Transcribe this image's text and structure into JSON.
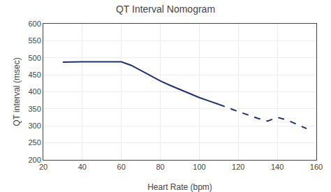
{
  "chart_data": {
    "type": "line",
    "title": "QT Interval Nomogram",
    "xlabel": "Heart Rate (bpm)",
    "ylabel": "QT interval (msec)",
    "xlim": [
      20,
      160
    ],
    "ylim": [
      200,
      600
    ],
    "xticks": [
      20,
      40,
      60,
      80,
      100,
      120,
      140,
      160
    ],
    "yticks": [
      200,
      250,
      300,
      350,
      400,
      450,
      500,
      550,
      600
    ],
    "grid": true,
    "series": [
      {
        "color": "#1e3070",
        "line_style": "solid",
        "x": [
          30,
          35,
          40,
          45,
          50,
          55,
          60,
          65,
          70,
          75,
          80,
          85,
          90,
          95,
          100,
          105,
          110
        ],
        "values": [
          487,
          488,
          488,
          488,
          488,
          488,
          488,
          478,
          463,
          448,
          432,
          419,
          407,
          395,
          383,
          373,
          363
        ]
      },
      {
        "color": "#1e3070",
        "line_style": "dashed",
        "x": [
          110,
          115,
          120,
          125,
          130,
          135,
          140,
          145,
          150,
          155
        ],
        "values": [
          363,
          352,
          342,
          332,
          322,
          314,
          325,
          317,
          305,
          292
        ]
      }
    ]
  }
}
